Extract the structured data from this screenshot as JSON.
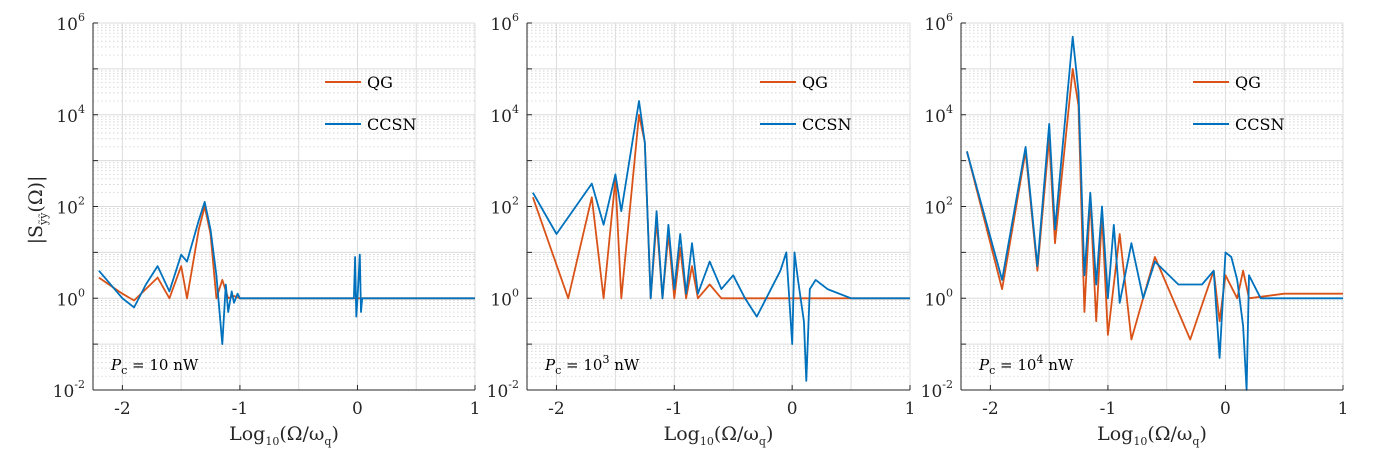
{
  "figure": {
    "ylabel": "|S",
    "ylabel_sub": "ỹỹ",
    "ylabel_tail": "(Ω)|"
  },
  "colors": {
    "qg": "#D95319",
    "ccsn": "#0072BD",
    "grid": "#c8c8c8"
  },
  "chart_data": [
    {
      "type": "line",
      "xlabel": "Log",
      "xlabel_sub": "10",
      "xlabel_tail": "(Ω/ω",
      "xlabel_sub2": "q",
      "xlabel_end": ")",
      "xlim": [
        -2.25,
        1
      ],
      "ylim_log10": [
        -2,
        6
      ],
      "yscale": "log",
      "x_ticks": [
        "-2",
        "-1",
        "0",
        "1"
      ],
      "y_ticks": [
        {
          "base": "10",
          "exp": "-2"
        },
        {
          "base": "10",
          "exp": "0"
        },
        {
          "base": "10",
          "exp": "2"
        },
        {
          "base": "10",
          "exp": "4"
        },
        {
          "base": "10",
          "exp": "6"
        }
      ],
      "annotation": {
        "sym": "P",
        "sub": "c",
        "eq": " = 10 nW",
        "exp": ""
      },
      "legend": [
        "QG",
        "CCSN"
      ],
      "series": [
        {
          "name": "QG",
          "x": [
            -2.2,
            -2.0,
            -1.9,
            -1.7,
            -1.6,
            -1.5,
            -1.45,
            -1.35,
            -1.3,
            -1.25,
            -1.2,
            -1.15,
            -1.1,
            -1.05,
            -1.0,
            -0.9,
            -0.1,
            0.0,
            0.05,
            0.1,
            1.0
          ],
          "log10y": [
            0.45,
            0.1,
            -0.05,
            0.45,
            0.0,
            0.7,
            0.0,
            1.5,
            2.0,
            1.4,
            0.0,
            0.4,
            0.0,
            0.05,
            0.0,
            0.0,
            0.0,
            0.0,
            0.0,
            0.0,
            0.0
          ]
        },
        {
          "name": "CCSN",
          "x": [
            -2.2,
            -2.0,
            -1.9,
            -1.8,
            -1.7,
            -1.6,
            -1.5,
            -1.45,
            -1.35,
            -1.3,
            -1.25,
            -1.2,
            -1.15,
            -1.12,
            -1.1,
            -1.07,
            -1.05,
            -1.02,
            -1.0,
            -0.95,
            -0.9,
            -0.5,
            -0.03,
            -0.02,
            -0.01,
            0.0,
            0.02,
            0.03,
            0.04,
            0.05,
            0.1,
            0.5,
            1.0
          ],
          "log10y": [
            0.6,
            0.0,
            -0.2,
            0.3,
            0.7,
            0.15,
            0.95,
            0.8,
            1.7,
            2.1,
            1.5,
            0.5,
            -1.0,
            0.3,
            -0.3,
            0.15,
            -0.1,
            0.1,
            0.0,
            0.0,
            0.0,
            0.0,
            0.0,
            0.9,
            -0.4,
            0.0,
            0.95,
            -0.3,
            0.0,
            0.0,
            0.0,
            0.0,
            0.0
          ]
        }
      ]
    },
    {
      "type": "line",
      "xlabel": "Log",
      "xlabel_sub": "10",
      "xlabel_tail": "(Ω/ω",
      "xlabel_sub2": "q",
      "xlabel_end": ")",
      "xlim": [
        -2.25,
        1
      ],
      "ylim_log10": [
        -2,
        6
      ],
      "yscale": "log",
      "x_ticks": [
        "-2",
        "-1",
        "0",
        "1"
      ],
      "y_ticks": [
        {
          "base": "10",
          "exp": "-2"
        },
        {
          "base": "10",
          "exp": "0"
        },
        {
          "base": "10",
          "exp": "2"
        },
        {
          "base": "10",
          "exp": "4"
        },
        {
          "base": "10",
          "exp": "6"
        }
      ],
      "annotation": {
        "sym": "P",
        "sub": "c",
        "eq": " = 10",
        "exp": "3",
        "tail": " nW"
      },
      "legend": [
        "QG",
        "CCSN"
      ],
      "series": [
        {
          "name": "QG",
          "x": [
            -2.2,
            -1.9,
            -1.7,
            -1.6,
            -1.5,
            -1.45,
            -1.3,
            -1.25,
            -1.2,
            -1.15,
            -1.1,
            -1.05,
            -1.0,
            -0.95,
            -0.9,
            -0.85,
            -0.8,
            -0.7,
            -0.6,
            -0.4,
            0.0,
            1.0
          ],
          "log10y": [
            2.2,
            0.0,
            2.2,
            0.0,
            2.6,
            0.0,
            4.0,
            3.4,
            0.0,
            1.7,
            0.0,
            1.4,
            0.0,
            1.1,
            0.0,
            0.7,
            0.0,
            0.3,
            0.0,
            0.0,
            0.0,
            0.0
          ]
        },
        {
          "name": "CCSN",
          "x": [
            -2.2,
            -2.0,
            -1.7,
            -1.6,
            -1.5,
            -1.45,
            -1.3,
            -1.25,
            -1.2,
            -1.15,
            -1.1,
            -1.05,
            -1.0,
            -0.95,
            -0.9,
            -0.85,
            -0.8,
            -0.7,
            -0.6,
            -0.5,
            -0.4,
            -0.3,
            -0.2,
            -0.1,
            -0.05,
            0.0,
            0.02,
            0.05,
            0.1,
            0.12,
            0.15,
            0.2,
            0.3,
            0.5,
            1.0
          ],
          "log10y": [
            2.3,
            1.4,
            2.5,
            1.6,
            2.7,
            1.9,
            4.3,
            3.4,
            0.0,
            1.9,
            0.0,
            1.6,
            0.2,
            1.4,
            0.1,
            1.2,
            0.1,
            0.8,
            0.2,
            0.5,
            0.0,
            -0.4,
            0.1,
            0.6,
            1.0,
            -1.0,
            1.0,
            0.4,
            -0.5,
            -1.8,
            0.2,
            0.4,
            0.2,
            0.0,
            0.0
          ]
        }
      ]
    },
    {
      "type": "line",
      "xlabel": "Log",
      "xlabel_sub": "10",
      "xlabel_tail": "(Ω/ω",
      "xlabel_sub2": "q",
      "xlabel_end": ")",
      "xlim": [
        -2.25,
        1
      ],
      "ylim_log10": [
        -2,
        6
      ],
      "yscale": "log",
      "x_ticks": [
        "-2",
        "-1",
        "0",
        "1"
      ],
      "y_ticks": [
        {
          "base": "10",
          "exp": "-2"
        },
        {
          "base": "10",
          "exp": "0"
        },
        {
          "base": "10",
          "exp": "2"
        },
        {
          "base": "10",
          "exp": "4"
        },
        {
          "base": "10",
          "exp": "6"
        }
      ],
      "annotation": {
        "sym": "P",
        "sub": "c",
        "eq": " = 10",
        "exp": "4",
        "tail": " nW"
      },
      "legend": [
        "QG",
        "CCSN"
      ],
      "series": [
        {
          "name": "QG",
          "x": [
            -2.2,
            -1.9,
            -1.7,
            -1.6,
            -1.5,
            -1.45,
            -1.3,
            -1.25,
            -1.2,
            -1.15,
            -1.1,
            -1.05,
            -1.0,
            -0.9,
            -0.8,
            -0.6,
            -0.3,
            -0.1,
            -0.05,
            0.0,
            0.1,
            0.15,
            0.2,
            0.5,
            1.0
          ],
          "log10y": [
            3.2,
            0.2,
            3.2,
            0.6,
            3.5,
            1.2,
            5.0,
            4.2,
            -0.3,
            2.2,
            -0.5,
            1.8,
            -0.8,
            1.4,
            -0.9,
            0.9,
            -0.9,
            0.6,
            -0.5,
            0.5,
            0.0,
            0.6,
            0.0,
            0.1,
            0.1
          ]
        },
        {
          "name": "CCSN",
          "x": [
            -2.2,
            -1.9,
            -1.7,
            -1.6,
            -1.5,
            -1.45,
            -1.3,
            -1.25,
            -1.2,
            -1.15,
            -1.1,
            -1.05,
            -1.0,
            -0.95,
            -0.9,
            -0.8,
            -0.7,
            -0.6,
            -0.4,
            -0.2,
            -0.1,
            -0.05,
            0.0,
            0.05,
            0.1,
            0.15,
            0.18,
            0.2,
            0.3,
            0.5,
            1.0
          ],
          "log10y": [
            3.2,
            0.4,
            3.3,
            0.7,
            3.8,
            1.5,
            5.7,
            4.5,
            0.5,
            2.3,
            0.3,
            2.0,
            0.0,
            1.6,
            -0.1,
            1.2,
            0.0,
            0.8,
            0.3,
            0.3,
            0.6,
            -1.3,
            1.0,
            0.9,
            0.4,
            -0.6,
            -2.0,
            0.5,
            0.0,
            0.0,
            0.0
          ]
        }
      ]
    }
  ]
}
